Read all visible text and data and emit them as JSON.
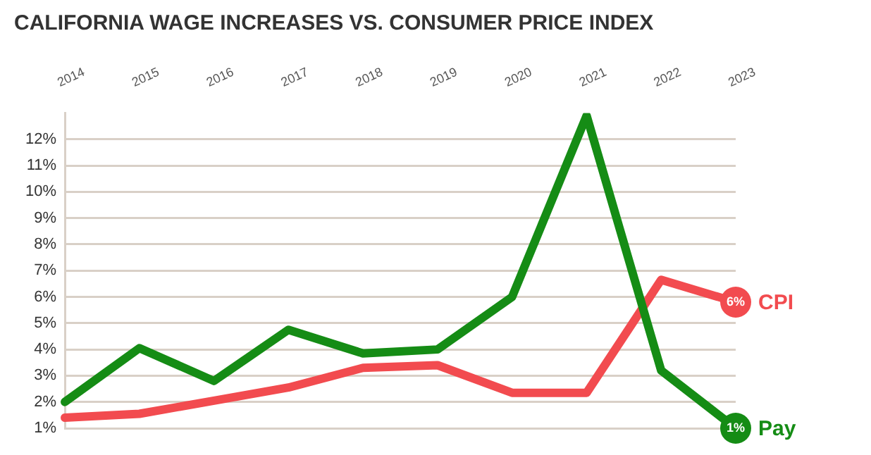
{
  "chart_data": {
    "type": "line",
    "title": "CALIFORNIA WAGE INCREASES VS. CONSUMER PRICE INDEX",
    "categories": [
      "2014",
      "2015",
      "2016",
      "2017",
      "2018",
      "2019",
      "2020",
      "2021",
      "2022",
      "2023"
    ],
    "series": [
      {
        "name": "Pay",
        "color": "#158c15",
        "values": [
          2.0,
          4.05,
          2.8,
          4.75,
          3.85,
          4.0,
          6.0,
          12.9,
          3.2,
          1.0
        ]
      },
      {
        "name": "CPI",
        "color": "#f24b4f",
        "values": [
          1.4,
          1.55,
          2.05,
          2.55,
          3.3,
          3.4,
          2.35,
          2.35,
          6.65,
          5.8
        ]
      }
    ],
    "ylim": [
      1,
      13
    ],
    "yticks": [
      {
        "value": 1,
        "label": "1%"
      },
      {
        "value": 2,
        "label": "2%"
      },
      {
        "value": 3,
        "label": "3%"
      },
      {
        "value": 4,
        "label": "4%"
      },
      {
        "value": 5,
        "label": "5%"
      },
      {
        "value": 6,
        "label": "6%"
      },
      {
        "value": 7,
        "label": "7%"
      },
      {
        "value": 8,
        "label": "8%"
      },
      {
        "value": 9,
        "label": "9%"
      },
      {
        "value": 10,
        "label": "10%"
      },
      {
        "value": 11,
        "label": "11%"
      },
      {
        "value": 12,
        "label": "12%"
      }
    ],
    "grid": "y",
    "legend": false,
    "marker": "none",
    "line_style": "solid",
    "annotations": [
      {
        "text": "1%",
        "x": "2023",
        "y": 1.0
      },
      {
        "text": "6%",
        "x": "2023",
        "y": 5.8
      }
    ]
  }
}
